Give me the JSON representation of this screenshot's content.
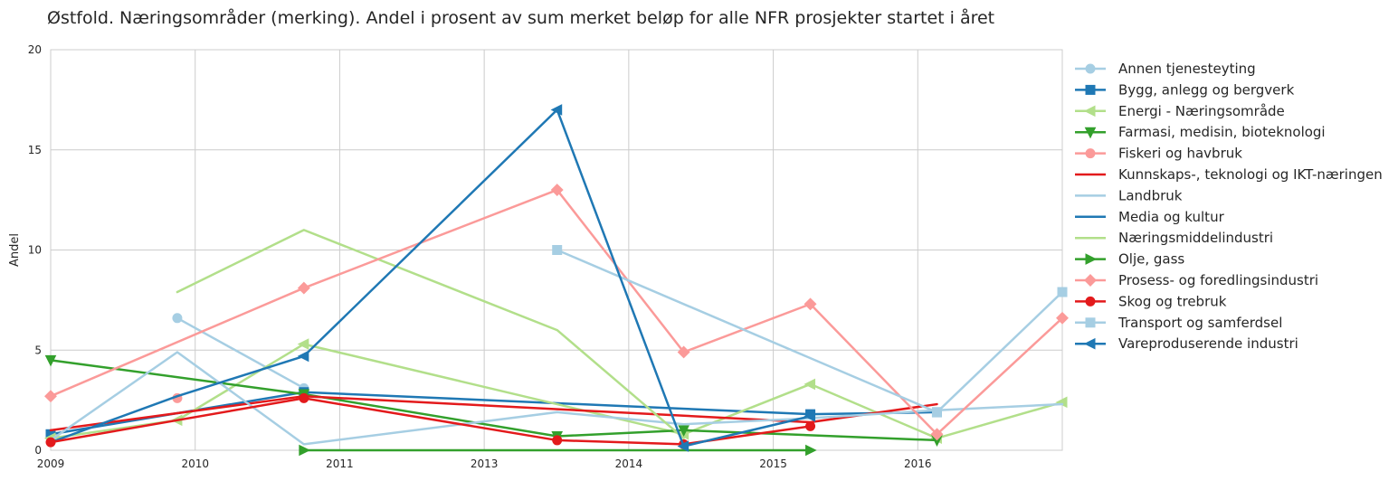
{
  "chart_data": {
    "type": "line",
    "title": "Østfold. Næringsområder (merking). Andel i prosent av sum merket beløp for alle NFR prosjekter startet i året",
    "xlabel": "",
    "ylabel": "Andel",
    "xlim": [
      2009,
      2016.99
    ],
    "ylim": [
      0,
      20
    ],
    "x_ticks": [
      "2009",
      "2010",
      "2011",
      "2013",
      "2014",
      "2015",
      "2016"
    ],
    "y_ticks": [
      "0",
      "5",
      "10",
      "15",
      "20"
    ],
    "grid": true,
    "legend_position": "outside-right",
    "series": [
      {
        "name": "Annen tjenesteyting",
        "color": "#a6cee3",
        "marker": "circle",
        "points": [
          [
            2010,
            6.6
          ],
          [
            2011,
            3.1
          ]
        ]
      },
      {
        "name": "Bygg, anlegg og bergverk",
        "color": "#1f78b4",
        "marker": "square",
        "points": [
          [
            2009,
            0.8
          ],
          [
            2011,
            2.9
          ],
          [
            2015,
            1.8
          ],
          [
            2016,
            1.9
          ]
        ]
      },
      {
        "name": "Energi - Næringsområde",
        "color": "#b2df8a",
        "marker": "triangle-left",
        "points": [
          [
            2009,
            0.6
          ],
          [
            2010,
            1.5
          ],
          [
            2011,
            5.3
          ],
          [
            2014,
            0.8
          ],
          [
            2015,
            3.3
          ],
          [
            2016,
            0.6
          ],
          [
            2016.99,
            2.4
          ]
        ]
      },
      {
        "name": "Farmasi, medisin, bioteknologi",
        "color": "#33a02c",
        "marker": "triangle-down",
        "points": [
          [
            2009,
            4.5
          ],
          [
            2011,
            2.8
          ],
          [
            2013,
            0.7
          ],
          [
            2014,
            1.0
          ],
          [
            2016,
            0.5
          ]
        ]
      },
      {
        "name": "Fiskeri og havbruk",
        "color": "#fb9a99",
        "marker": "circle",
        "points": [
          [
            2010,
            2.6
          ]
        ]
      },
      {
        "name": "Kunnskaps-, teknologi og IKT-næringen",
        "color": "#e31a1c",
        "marker": "none",
        "points": [
          [
            2009,
            1.0
          ],
          [
            2011,
            2.7
          ],
          [
            2015,
            1.4
          ],
          [
            2016,
            2.3
          ]
        ]
      },
      {
        "name": "Landbruk",
        "color": "#a6cee3",
        "marker": "none",
        "points": [
          [
            2009,
            0.5
          ],
          [
            2010,
            4.9
          ],
          [
            2011,
            0.3
          ],
          [
            2013,
            1.9
          ],
          [
            2014,
            1.3
          ],
          [
            2015,
            1.6
          ],
          [
            2016,
            2.0
          ],
          [
            2016.99,
            2.3
          ]
        ]
      },
      {
        "name": "Media og kultur",
        "color": "#1f78b4",
        "marker": "none",
        "points": [
          [
            2009,
            0.4
          ],
          [
            2010,
            2.7
          ],
          [
            2011,
            4.7
          ]
        ]
      },
      {
        "name": "Næringsmiddelindustri",
        "color": "#b2df8a",
        "marker": "none",
        "points": [
          [
            2010,
            7.9
          ],
          [
            2011,
            11.0
          ],
          [
            2013,
            6.0
          ],
          [
            2014,
            0.6
          ]
        ]
      },
      {
        "name": "Olje, gass",
        "color": "#33a02c",
        "marker": "triangle-right",
        "points": [
          [
            2011,
            0.0
          ],
          [
            2015,
            0.0
          ]
        ]
      },
      {
        "name": "Prosess- og foredlingsindustri",
        "color": "#fb9a99",
        "marker": "diamond",
        "points": [
          [
            2009,
            2.7
          ],
          [
            2011,
            8.1
          ],
          [
            2013,
            13.0
          ],
          [
            2014,
            4.9
          ],
          [
            2015,
            7.3
          ],
          [
            2016,
            0.8
          ],
          [
            2016.99,
            6.6
          ]
        ]
      },
      {
        "name": "Skog og trebruk",
        "color": "#e31a1c",
        "marker": "circle",
        "points": [
          [
            2009,
            0.4
          ],
          [
            2011,
            2.6
          ],
          [
            2013,
            0.5
          ],
          [
            2014,
            0.3
          ],
          [
            2015,
            1.2
          ]
        ]
      },
      {
        "name": "Transport og samferdsel",
        "color": "#a6cee3",
        "marker": "square",
        "points": [
          [
            2013,
            10.0
          ],
          [
            2016,
            1.9
          ],
          [
            2016.99,
            7.9
          ]
        ]
      },
      {
        "name": "Vareproduserende industri",
        "color": "#1f78b4",
        "marker": "triangle-left",
        "points": [
          [
            2011,
            4.7
          ],
          [
            2013,
            17.0
          ],
          [
            2014,
            0.2
          ],
          [
            2015,
            1.7
          ]
        ]
      }
    ]
  }
}
